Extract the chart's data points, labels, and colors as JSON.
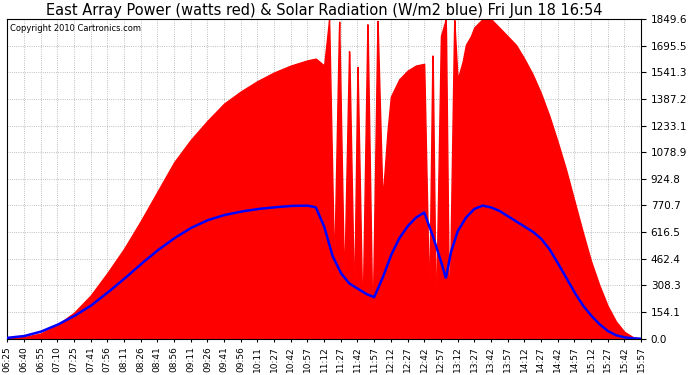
{
  "title": "East Array Power (watts red) & Solar Radiation (W/m2 blue) Fri Jun 18 16:54",
  "copyright": "Copyright 2010 Cartronics.com",
  "y_ticks": [
    0.0,
    154.1,
    308.3,
    462.4,
    616.5,
    770.7,
    924.8,
    1078.9,
    1233.1,
    1387.2,
    1541.3,
    1695.5,
    1849.6
  ],
  "y_max": 1849.6,
  "background_color": "#ffffff",
  "grid_color": "#aaaaaa",
  "fill_color": "#ff0000",
  "line_color": "#0000ff",
  "title_fontsize": 10.5,
  "x_labels": [
    "06:25",
    "06:40",
    "06:55",
    "07:10",
    "07:25",
    "07:41",
    "07:56",
    "08:11",
    "08:26",
    "08:41",
    "08:56",
    "09:11",
    "09:26",
    "09:41",
    "09:56",
    "10:11",
    "10:27",
    "10:42",
    "10:57",
    "11:12",
    "11:27",
    "11:42",
    "11:57",
    "12:12",
    "12:27",
    "12:42",
    "12:57",
    "13:12",
    "13:27",
    "13:42",
    "13:57",
    "14:12",
    "14:27",
    "14:42",
    "14:57",
    "15:12",
    "15:27",
    "15:42",
    "15:57"
  ]
}
